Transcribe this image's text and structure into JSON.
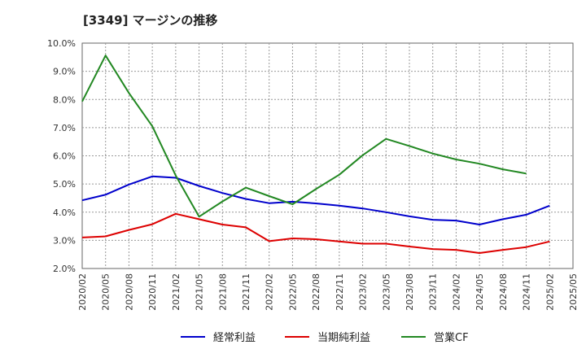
{
  "chart_data": {
    "type": "line",
    "title": "[3349]  マージンの推移",
    "x": [
      "2020/02",
      "2020/05",
      "2020/08",
      "2020/11",
      "2021/02",
      "2021/05",
      "2021/08",
      "2021/11",
      "2022/02",
      "2022/05",
      "2022/08",
      "2022/11",
      "2023/02",
      "2023/05",
      "2023/08",
      "2023/11",
      "2024/02",
      "2024/05",
      "2024/08",
      "2024/11",
      "2025/02",
      "2025/05"
    ],
    "ylim": [
      2.0,
      10.0
    ],
    "yticks": [
      "2.0%",
      "3.0%",
      "4.0%",
      "5.0%",
      "6.0%",
      "7.0%",
      "8.0%",
      "9.0%",
      "10.0%"
    ],
    "grid": true,
    "legend_position": "bottom",
    "series": [
      {
        "name": "経常利益",
        "color": "#0000cc",
        "values": [
          4.42,
          4.62,
          4.98,
          5.27,
          5.22,
          4.93,
          4.68,
          4.47,
          4.32,
          4.37,
          4.31,
          4.23,
          4.13,
          4.0,
          3.85,
          3.73,
          3.7,
          3.56,
          3.75,
          3.91,
          4.23,
          null
        ]
      },
      {
        "name": "当期純利益",
        "color": "#dd0000",
        "values": [
          3.1,
          3.14,
          3.37,
          3.57,
          3.94,
          3.75,
          3.56,
          3.46,
          2.97,
          3.07,
          3.04,
          2.96,
          2.88,
          2.88,
          2.78,
          2.69,
          2.66,
          2.55,
          2.66,
          2.76,
          2.96,
          null
        ]
      },
      {
        "name": "営業CF",
        "color": "#228822",
        "values": [
          7.93,
          9.56,
          8.23,
          7.05,
          5.3,
          3.84,
          4.38,
          4.87,
          4.57,
          4.28,
          4.82,
          5.33,
          6.02,
          6.6,
          6.35,
          6.08,
          5.87,
          5.72,
          5.52,
          5.37,
          null,
          null
        ]
      }
    ]
  }
}
